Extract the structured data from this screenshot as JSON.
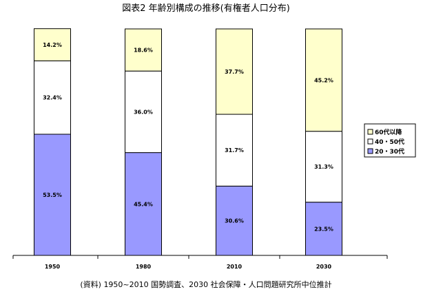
{
  "chart_data": {
    "type": "bar",
    "stacked": true,
    "percent": true,
    "title": "図表2 年齢別構成の推移(有権者人口分布)",
    "source": "(資料) 1950~2010 国勢調査、2030 社会保障・人口問題研究所中位推計",
    "categories": [
      "1950",
      "1980",
      "2010",
      "2030"
    ],
    "series": [
      {
        "name": "20・30代",
        "values": [
          53.5,
          45.4,
          30.6,
          23.5
        ],
        "labels": [
          "53.5%",
          "45.4%",
          "30.6%",
          "23.5%"
        ],
        "color": "#9999ff"
      },
      {
        "name": "40・50代",
        "values": [
          32.4,
          36.0,
          31.7,
          31.3
        ],
        "labels": [
          "32.4%",
          "36.0%",
          "31.7%",
          "31.3%"
        ],
        "color": "#ffffff"
      },
      {
        "name": "60代以降",
        "values": [
          14.2,
          18.6,
          37.7,
          45.2
        ],
        "labels": [
          "14.2%",
          "18.6%",
          "37.7%",
          "45.2%"
        ],
        "color": "#ffffcc"
      }
    ],
    "legend_order": [
      "60代以降",
      "40・50代",
      "20・30代"
    ],
    "legend_position": "right",
    "ylim": [
      0,
      100
    ],
    "grid": false
  }
}
